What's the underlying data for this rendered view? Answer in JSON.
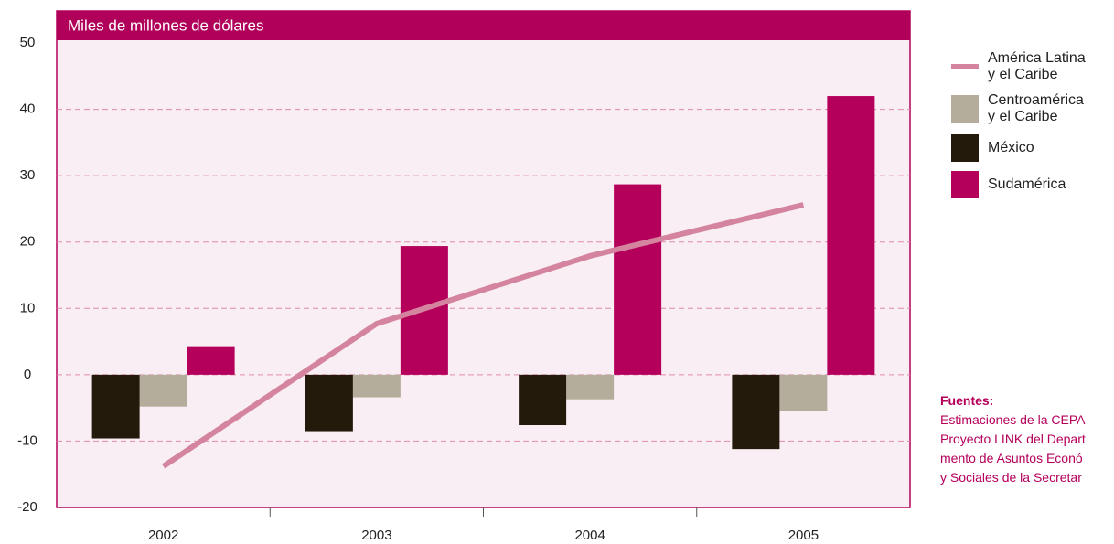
{
  "chart_data": {
    "type": "bar",
    "title": "Miles de millones de dólares",
    "categories": [
      "2002",
      "2003",
      "2004",
      "2005"
    ],
    "series": [
      {
        "name": "América Latina y el Caribe",
        "type": "line",
        "color": "#d4849f",
        "values": [
          -13.8,
          7.7,
          17.9,
          25.6
        ]
      },
      {
        "name": "Centroamérica y el Caribe",
        "color": "#b5ad9c",
        "values": [
          -4.8,
          -3.4,
          -3.7,
          -5.5
        ]
      },
      {
        "name": "México",
        "color": "#231a0b",
        "values": [
          -9.6,
          -8.5,
          -7.6,
          -11.2
        ]
      },
      {
        "name": "Sudamérica",
        "color": "#b5005b",
        "values": [
          4.3,
          19.4,
          28.7,
          42.0
        ]
      }
    ],
    "ylim": [
      -20,
      50
    ],
    "yticks": [
      -20,
      -10,
      0,
      10,
      20,
      30,
      40,
      50
    ],
    "grid": true,
    "sources": {
      "title": "Fuentes:",
      "lines": [
        "Estimaciones de la CEPA",
        "Proyecto LINK del Depart",
        "mento de Asuntos Econó",
        "y Sociales de la Secretar"
      ]
    }
  }
}
